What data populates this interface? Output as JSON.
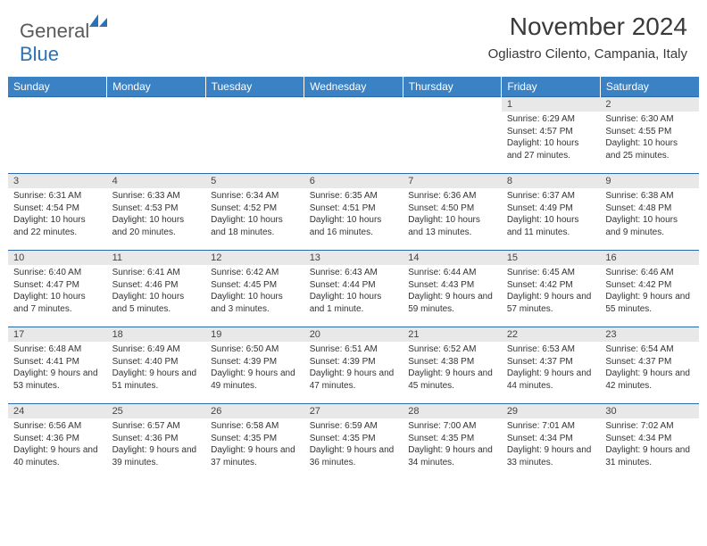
{
  "brand": {
    "general": "General",
    "blue": "Blue"
  },
  "title": "November 2024",
  "location": "Ogliastro Cilento, Campania, Italy",
  "colors": {
    "header_bg": "#3b82c4",
    "header_text": "#ffffff",
    "daynum_bg": "#e8e8e8",
    "row_border": "#2a6aa8",
    "logo_blue": "#2a72b5",
    "logo_gray": "#5a5a5a"
  },
  "weekdays": [
    "Sunday",
    "Monday",
    "Tuesday",
    "Wednesday",
    "Thursday",
    "Friday",
    "Saturday"
  ],
  "weeks": [
    [
      null,
      null,
      null,
      null,
      null,
      {
        "n": "1",
        "sr": "6:29 AM",
        "ss": "4:57 PM",
        "dl": "10 hours and 27 minutes."
      },
      {
        "n": "2",
        "sr": "6:30 AM",
        "ss": "4:55 PM",
        "dl": "10 hours and 25 minutes."
      }
    ],
    [
      {
        "n": "3",
        "sr": "6:31 AM",
        "ss": "4:54 PM",
        "dl": "10 hours and 22 minutes."
      },
      {
        "n": "4",
        "sr": "6:33 AM",
        "ss": "4:53 PM",
        "dl": "10 hours and 20 minutes."
      },
      {
        "n": "5",
        "sr": "6:34 AM",
        "ss": "4:52 PM",
        "dl": "10 hours and 18 minutes."
      },
      {
        "n": "6",
        "sr": "6:35 AM",
        "ss": "4:51 PM",
        "dl": "10 hours and 16 minutes."
      },
      {
        "n": "7",
        "sr": "6:36 AM",
        "ss": "4:50 PM",
        "dl": "10 hours and 13 minutes."
      },
      {
        "n": "8",
        "sr": "6:37 AM",
        "ss": "4:49 PM",
        "dl": "10 hours and 11 minutes."
      },
      {
        "n": "9",
        "sr": "6:38 AM",
        "ss": "4:48 PM",
        "dl": "10 hours and 9 minutes."
      }
    ],
    [
      {
        "n": "10",
        "sr": "6:40 AM",
        "ss": "4:47 PM",
        "dl": "10 hours and 7 minutes."
      },
      {
        "n": "11",
        "sr": "6:41 AM",
        "ss": "4:46 PM",
        "dl": "10 hours and 5 minutes."
      },
      {
        "n": "12",
        "sr": "6:42 AM",
        "ss": "4:45 PM",
        "dl": "10 hours and 3 minutes."
      },
      {
        "n": "13",
        "sr": "6:43 AM",
        "ss": "4:44 PM",
        "dl": "10 hours and 1 minute."
      },
      {
        "n": "14",
        "sr": "6:44 AM",
        "ss": "4:43 PM",
        "dl": "9 hours and 59 minutes."
      },
      {
        "n": "15",
        "sr": "6:45 AM",
        "ss": "4:42 PM",
        "dl": "9 hours and 57 minutes."
      },
      {
        "n": "16",
        "sr": "6:46 AM",
        "ss": "4:42 PM",
        "dl": "9 hours and 55 minutes."
      }
    ],
    [
      {
        "n": "17",
        "sr": "6:48 AM",
        "ss": "4:41 PM",
        "dl": "9 hours and 53 minutes."
      },
      {
        "n": "18",
        "sr": "6:49 AM",
        "ss": "4:40 PM",
        "dl": "9 hours and 51 minutes."
      },
      {
        "n": "19",
        "sr": "6:50 AM",
        "ss": "4:39 PM",
        "dl": "9 hours and 49 minutes."
      },
      {
        "n": "20",
        "sr": "6:51 AM",
        "ss": "4:39 PM",
        "dl": "9 hours and 47 minutes."
      },
      {
        "n": "21",
        "sr": "6:52 AM",
        "ss": "4:38 PM",
        "dl": "9 hours and 45 minutes."
      },
      {
        "n": "22",
        "sr": "6:53 AM",
        "ss": "4:37 PM",
        "dl": "9 hours and 44 minutes."
      },
      {
        "n": "23",
        "sr": "6:54 AM",
        "ss": "4:37 PM",
        "dl": "9 hours and 42 minutes."
      }
    ],
    [
      {
        "n": "24",
        "sr": "6:56 AM",
        "ss": "4:36 PM",
        "dl": "9 hours and 40 minutes."
      },
      {
        "n": "25",
        "sr": "6:57 AM",
        "ss": "4:36 PM",
        "dl": "9 hours and 39 minutes."
      },
      {
        "n": "26",
        "sr": "6:58 AM",
        "ss": "4:35 PM",
        "dl": "9 hours and 37 minutes."
      },
      {
        "n": "27",
        "sr": "6:59 AM",
        "ss": "4:35 PM",
        "dl": "9 hours and 36 minutes."
      },
      {
        "n": "28",
        "sr": "7:00 AM",
        "ss": "4:35 PM",
        "dl": "9 hours and 34 minutes."
      },
      {
        "n": "29",
        "sr": "7:01 AM",
        "ss": "4:34 PM",
        "dl": "9 hours and 33 minutes."
      },
      {
        "n": "30",
        "sr": "7:02 AM",
        "ss": "4:34 PM",
        "dl": "9 hours and 31 minutes."
      }
    ]
  ],
  "labels": {
    "sunrise": "Sunrise:",
    "sunset": "Sunset:",
    "daylight": "Daylight:"
  }
}
